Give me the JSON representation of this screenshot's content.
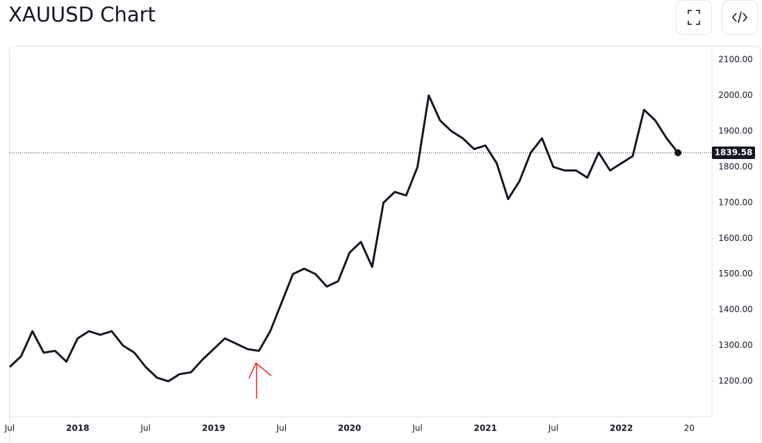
{
  "title": "XAUUSD Chart",
  "chart_data": {
    "type": "line",
    "x": [
      "2017-07",
      "2017-08",
      "2017-09",
      "2017-10",
      "2017-11",
      "2017-12",
      "2018-01",
      "2018-02",
      "2018-03",
      "2018-04",
      "2018-05",
      "2018-06",
      "2018-07",
      "2018-08",
      "2018-09",
      "2018-10",
      "2018-11",
      "2018-12",
      "2019-01",
      "2019-02",
      "2019-03",
      "2019-04",
      "2019-05",
      "2019-06",
      "2019-07",
      "2019-08",
      "2019-09",
      "2019-10",
      "2019-11",
      "2019-12",
      "2020-01",
      "2020-02",
      "2020-03",
      "2020-04",
      "2020-05",
      "2020-06",
      "2020-07",
      "2020-08",
      "2020-09",
      "2020-10",
      "2020-11",
      "2020-12",
      "2021-01",
      "2021-02",
      "2021-03",
      "2021-04",
      "2021-05",
      "2021-06",
      "2021-07",
      "2021-08",
      "2021-09",
      "2021-10",
      "2021-11",
      "2021-12",
      "2022-01",
      "2022-02",
      "2022-03",
      "2022-04",
      "2022-05",
      "2022-06"
    ],
    "series": [
      {
        "name": "XAUUSD",
        "color": "#131722",
        "values": [
          1240,
          1270,
          1340,
          1280,
          1285,
          1255,
          1320,
          1340,
          1330,
          1340,
          1300,
          1280,
          1240,
          1210,
          1200,
          1220,
          1225,
          1260,
          1290,
          1320,
          1305,
          1290,
          1285,
          1340,
          1420,
          1500,
          1515,
          1500,
          1465,
          1480,
          1560,
          1590,
          1520,
          1700,
          1730,
          1720,
          1800,
          2000,
          1930,
          1900,
          1880,
          1850,
          1860,
          1810,
          1710,
          1760,
          1840,
          1880,
          1800,
          1790,
          1790,
          1770,
          1840,
          1790,
          1810,
          1830,
          1960,
          1930,
          1880,
          1839.58
        ]
      }
    ],
    "xlim": [
      "2017-07",
      "2022-09"
    ],
    "xticks": [
      {
        "value": "2017-07",
        "label": "Jul"
      },
      {
        "value": "2018-01",
        "label": "2018"
      },
      {
        "value": "2018-07",
        "label": "Jul"
      },
      {
        "value": "2019-01",
        "label": "2019"
      },
      {
        "value": "2019-07",
        "label": "Jul"
      },
      {
        "value": "2020-01",
        "label": "2020"
      },
      {
        "value": "2020-07",
        "label": "Jul"
      },
      {
        "value": "2021-01",
        "label": "2021"
      },
      {
        "value": "2021-07",
        "label": "Jul"
      },
      {
        "value": "2022-01",
        "label": "2022"
      },
      {
        "value": "2022-07",
        "label": "20"
      }
    ],
    "ylim": [
      1101,
      2137
    ],
    "yticks": [
      {
        "value": 1200,
        "label": "1200.00"
      },
      {
        "value": 1300,
        "label": "1300.00"
      },
      {
        "value": 1400,
        "label": "1400.00"
      },
      {
        "value": 1500,
        "label": "1500.00"
      },
      {
        "value": 1600,
        "label": "1600.00"
      },
      {
        "value": 1700,
        "label": "1700.00"
      },
      {
        "value": 1800,
        "label": "1800.00"
      },
      {
        "value": 1900,
        "label": "1900.00"
      },
      {
        "value": 2000,
        "label": "2000.00"
      },
      {
        "value": 2100,
        "label": "2100.00"
      }
    ],
    "grid": false
  }
}
